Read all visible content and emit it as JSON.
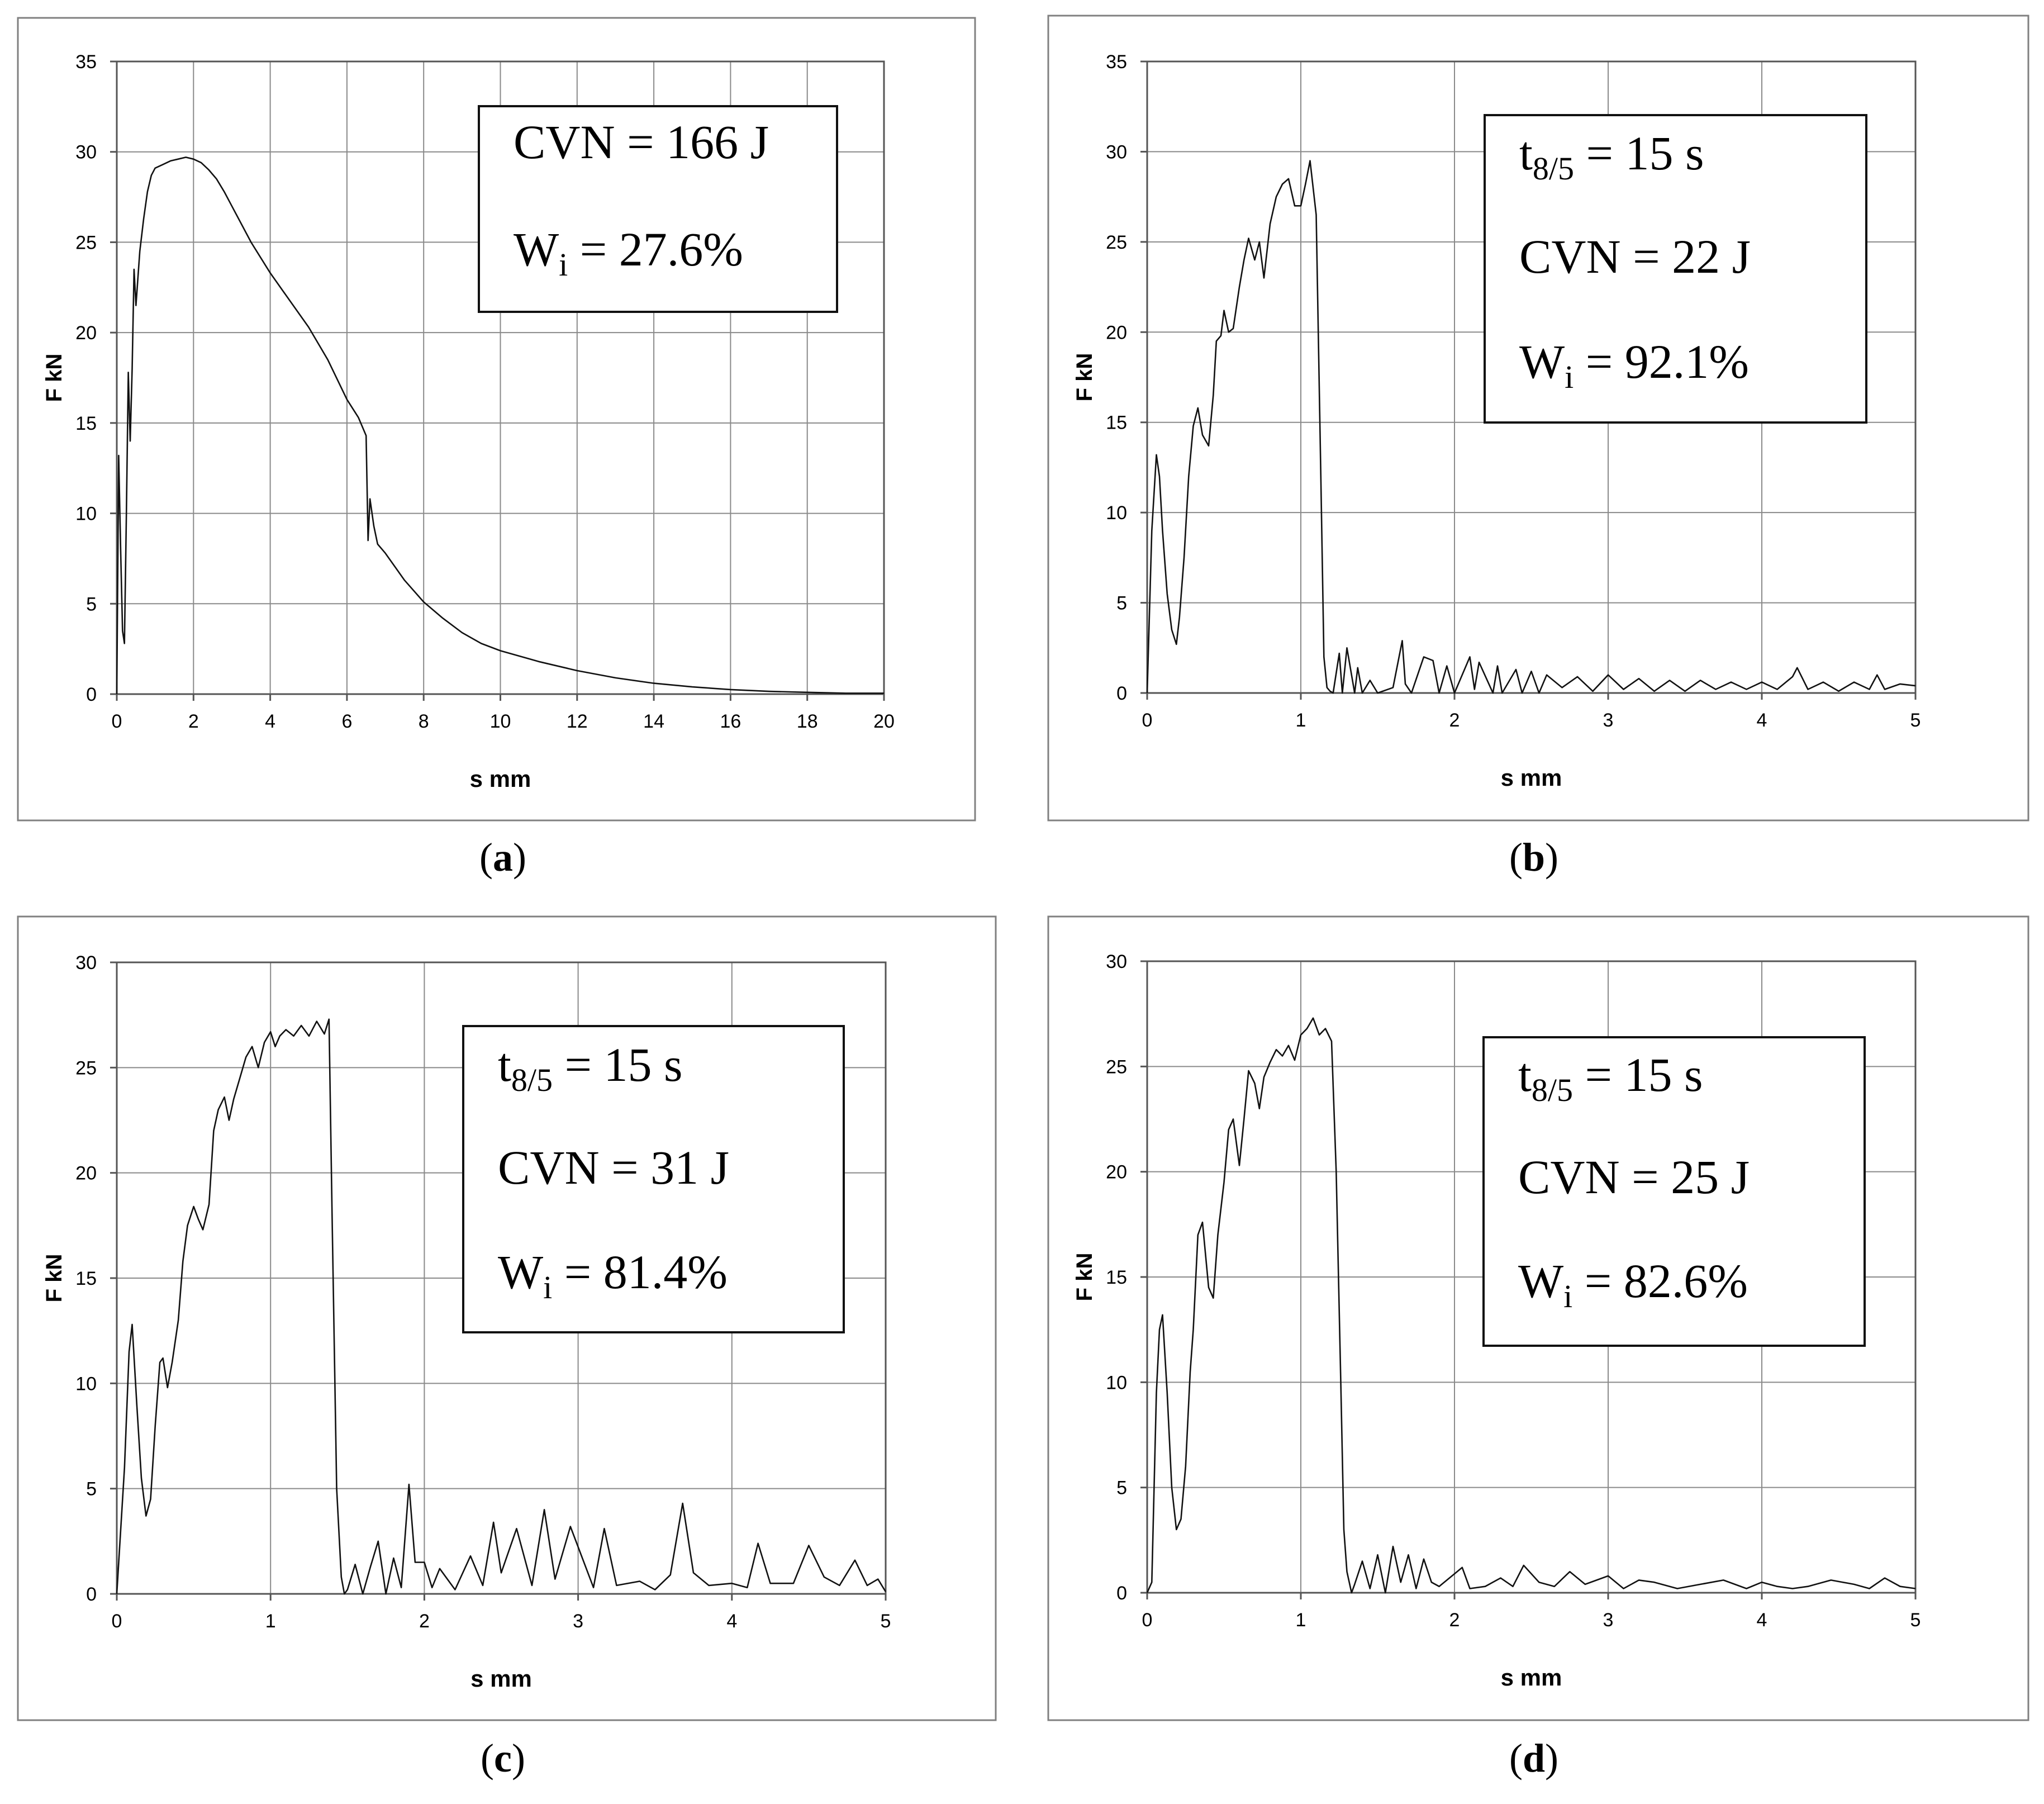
{
  "chart_data": [
    {
      "type": "line",
      "panel_label": "a",
      "xlabel": "s  mm",
      "ylabel": "F  kN",
      "xlim": [
        0,
        20
      ],
      "ylim": [
        0,
        35
      ],
      "xticks": [
        0,
        2,
        4,
        6,
        8,
        10,
        12,
        14,
        16,
        18,
        20
      ],
      "yticks": [
        0,
        5,
        10,
        15,
        20,
        25,
        30,
        35
      ],
      "grid": true,
      "annotation": [
        {
          "prefix": "CVN = 166 J",
          "sub": "",
          "suffix": ""
        },
        {
          "prefix": "W",
          "sub": "i",
          "suffix": " = 27.6%"
        }
      ],
      "series": [
        {
          "name": "F-s curve",
          "x": [
            0,
            0.05,
            0.1,
            0.15,
            0.2,
            0.25,
            0.3,
            0.35,
            0.4,
            0.45,
            0.5,
            0.6,
            0.7,
            0.8,
            0.9,
            1.0,
            1.2,
            1.4,
            1.6,
            1.8,
            2.0,
            2.2,
            2.4,
            2.6,
            2.8,
            3.0,
            3.5,
            4.0,
            4.5,
            5.0,
            5.5,
            6.0,
            6.3,
            6.5,
            6.55,
            6.6,
            6.7,
            6.8,
            7.0,
            7.5,
            8.0,
            8.5,
            9.0,
            9.5,
            10,
            11,
            12,
            13,
            14,
            15,
            16,
            17,
            18,
            19,
            20
          ],
          "y": [
            0,
            13.2,
            8,
            3.5,
            2.8,
            10,
            17.8,
            14,
            18,
            23.5,
            21.5,
            24.5,
            26.3,
            27.8,
            28.7,
            29.1,
            29.3,
            29.5,
            29.6,
            29.7,
            29.6,
            29.4,
            29.0,
            28.5,
            27.8,
            27.0,
            25.0,
            23.3,
            21.8,
            20.3,
            18.5,
            16.3,
            15.3,
            14.3,
            8.5,
            10.8,
            9.3,
            8.3,
            7.8,
            6.3,
            5.1,
            4.2,
            3.4,
            2.8,
            2.4,
            1.8,
            1.3,
            0.9,
            0.6,
            0.4,
            0.25,
            0.15,
            0.1,
            0.05,
            0.05
          ]
        }
      ]
    },
    {
      "type": "line",
      "panel_label": "b",
      "xlabel": "s  mm",
      "ylabel": "F  kN",
      "xlim": [
        0,
        5
      ],
      "ylim": [
        0,
        35
      ],
      "xticks": [
        0,
        1,
        2,
        3,
        4,
        5
      ],
      "yticks": [
        0,
        5,
        10,
        15,
        20,
        25,
        30,
        35
      ],
      "grid": true,
      "annotation": [
        {
          "prefix": "t",
          "sub": "8/5",
          "suffix": " = 15 s"
        },
        {
          "prefix": "CVN = 22 J",
          "sub": "",
          "suffix": ""
        },
        {
          "prefix": "W",
          "sub": "i",
          "suffix": " = 92.1%"
        }
      ],
      "series": [
        {
          "name": "F-s curve",
          "x": [
            0,
            0.03,
            0.06,
            0.08,
            0.1,
            0.13,
            0.16,
            0.19,
            0.21,
            0.24,
            0.27,
            0.3,
            0.33,
            0.36,
            0.4,
            0.43,
            0.45,
            0.48,
            0.5,
            0.53,
            0.56,
            0.6,
            0.63,
            0.66,
            0.7,
            0.73,
            0.76,
            0.8,
            0.84,
            0.88,
            0.92,
            0.96,
            1.0,
            1.03,
            1.06,
            1.1,
            1.13,
            1.15,
            1.17,
            1.19,
            1.21,
            1.25,
            1.27,
            1.3,
            1.35,
            1.37,
            1.4,
            1.45,
            1.5,
            1.6,
            1.66,
            1.68,
            1.72,
            1.8,
            1.86,
            1.9,
            1.95,
            2.0,
            2.1,
            2.13,
            2.16,
            2.25,
            2.28,
            2.31,
            2.4,
            2.44,
            2.5,
            2.55,
            2.6,
            2.7,
            2.8,
            2.9,
            3.0,
            3.1,
            3.2,
            3.3,
            3.4,
            3.5,
            3.6,
            3.7,
            3.8,
            3.9,
            4.0,
            4.1,
            4.2,
            4.23,
            4.3,
            4.4,
            4.5,
            4.6,
            4.7,
            4.75,
            4.8,
            4.9,
            5.0
          ],
          "y": [
            0,
            9,
            13.2,
            12,
            9,
            5.5,
            3.5,
            2.7,
            4.2,
            7.5,
            12.0,
            14.8,
            15.8,
            14.3,
            13.7,
            16.5,
            19.5,
            19.8,
            21.2,
            20.0,
            20.2,
            22.5,
            24.0,
            25.2,
            24.0,
            25.0,
            23.0,
            26.0,
            27.5,
            28.2,
            28.5,
            27.0,
            27.0,
            28.2,
            29.5,
            26.5,
            12.0,
            2.0,
            0.3,
            0.1,
            0,
            2.2,
            0,
            2.5,
            0,
            1.4,
            0,
            0.7,
            0,
            0.3,
            2.9,
            0.5,
            0,
            2.0,
            1.8,
            0,
            1.5,
            0,
            2.0,
            0.2,
            1.7,
            0,
            1.5,
            0,
            1.3,
            0,
            1.2,
            0,
            1.0,
            0.3,
            0.9,
            0.1,
            1.0,
            0.2,
            0.8,
            0.1,
            0.7,
            0.1,
            0.7,
            0.2,
            0.6,
            0.2,
            0.6,
            0.2,
            0.9,
            1.4,
            0.2,
            0.6,
            0.1,
            0.6,
            0.2,
            1.0,
            0.2,
            0.5,
            0.4
          ]
        }
      ]
    },
    {
      "type": "line",
      "panel_label": "c",
      "xlabel": "s  mm",
      "ylabel": "F  kN",
      "xlim": [
        0,
        5
      ],
      "ylim": [
        0,
        30
      ],
      "xticks": [
        0,
        1,
        2,
        3,
        4,
        5
      ],
      "yticks": [
        0,
        5,
        10,
        15,
        20,
        25,
        30
      ],
      "grid": true,
      "annotation": [
        {
          "prefix": "t",
          "sub": "8/5",
          "suffix": " = 15 s"
        },
        {
          "prefix": "CVN = 31 J",
          "sub": "",
          "suffix": ""
        },
        {
          "prefix": "W",
          "sub": "i",
          "suffix": " = 81.4%"
        }
      ],
      "series": [
        {
          "name": "F-s curve",
          "x": [
            0,
            0.05,
            0.08,
            0.1,
            0.13,
            0.16,
            0.19,
            0.22,
            0.25,
            0.28,
            0.3,
            0.33,
            0.36,
            0.4,
            0.43,
            0.46,
            0.5,
            0.53,
            0.56,
            0.6,
            0.63,
            0.66,
            0.7,
            0.73,
            0.76,
            0.8,
            0.84,
            0.88,
            0.92,
            0.96,
            1.0,
            1.03,
            1.06,
            1.1,
            1.15,
            1.2,
            1.25,
            1.3,
            1.35,
            1.38,
            1.4,
            1.43,
            1.46,
            1.48,
            1.5,
            1.55,
            1.6,
            1.65,
            1.7,
            1.75,
            1.8,
            1.85,
            1.9,
            1.94,
            2.0,
            2.05,
            2.1,
            2.2,
            2.3,
            2.38,
            2.45,
            2.5,
            2.6,
            2.7,
            2.78,
            2.85,
            2.95,
            3.1,
            3.17,
            3.25,
            3.4,
            3.5,
            3.6,
            3.68,
            3.75,
            3.85,
            4.0,
            4.1,
            4.17,
            4.25,
            4.4,
            4.5,
            4.6,
            4.7,
            4.8,
            4.88,
            4.95,
            5.0
          ],
          "y": [
            0,
            6,
            11.5,
            12.8,
            9.0,
            5.5,
            3.7,
            4.5,
            8.0,
            11.0,
            11.2,
            9.8,
            11.0,
            13.0,
            15.8,
            17.5,
            18.4,
            17.8,
            17.3,
            18.5,
            22.0,
            23.0,
            23.6,
            22.5,
            23.5,
            24.5,
            25.5,
            26.0,
            25.0,
            26.2,
            26.7,
            26.0,
            26.5,
            26.8,
            26.5,
            27.0,
            26.5,
            27.2,
            26.6,
            27.3,
            18.0,
            5.0,
            0.8,
            0,
            0.2,
            1.4,
            0,
            1.3,
            2.5,
            0,
            1.7,
            0.3,
            5.2,
            1.5,
            1.5,
            0.3,
            1.2,
            0.2,
            1.8,
            0.4,
            3.4,
            1.0,
            3.1,
            0.4,
            4.0,
            0.7,
            3.2,
            0.3,
            3.1,
            0.4,
            0.6,
            0.2,
            0.9,
            4.3,
            1.0,
            0.4,
            0.5,
            0.3,
            2.4,
            0.5,
            0.5,
            2.3,
            0.8,
            0.4,
            1.6,
            0.4,
            0.7,
            0.1
          ]
        }
      ]
    },
    {
      "type": "line",
      "panel_label": "d",
      "xlabel": "s  mm",
      "ylabel": "F  kN",
      "xlim": [
        0,
        5
      ],
      "ylim": [
        0,
        30
      ],
      "xticks": [
        0,
        1,
        2,
        3,
        4,
        5
      ],
      "yticks": [
        0,
        5,
        10,
        15,
        20,
        25,
        30
      ],
      "grid": true,
      "annotation": [
        {
          "prefix": "t",
          "sub": "8/5",
          "suffix": " = 15 s"
        },
        {
          "prefix": "CVN = 25 J",
          "sub": "",
          "suffix": ""
        },
        {
          "prefix": "W",
          "sub": "i",
          "suffix": " = 82.6%"
        }
      ],
      "series": [
        {
          "name": "F-s curve",
          "x": [
            0,
            0.03,
            0.06,
            0.08,
            0.1,
            0.13,
            0.16,
            0.19,
            0.22,
            0.25,
            0.28,
            0.3,
            0.33,
            0.36,
            0.4,
            0.43,
            0.46,
            0.5,
            0.53,
            0.56,
            0.6,
            0.63,
            0.66,
            0.7,
            0.73,
            0.76,
            0.8,
            0.84,
            0.88,
            0.92,
            0.96,
            1.0,
            1.04,
            1.08,
            1.12,
            1.16,
            1.2,
            1.23,
            1.26,
            1.28,
            1.3,
            1.33,
            1.35,
            1.4,
            1.45,
            1.5,
            1.55,
            1.6,
            1.65,
            1.7,
            1.75,
            1.8,
            1.85,
            1.9,
            2.0,
            2.05,
            2.1,
            2.2,
            2.3,
            2.38,
            2.45,
            2.55,
            2.65,
            2.75,
            2.85,
            3.0,
            3.1,
            3.2,
            3.3,
            3.45,
            3.6,
            3.75,
            3.9,
            4.0,
            4.1,
            4.2,
            4.3,
            4.45,
            4.6,
            4.7,
            4.8,
            4.9,
            5.0
          ],
          "y": [
            0,
            0.5,
            9.5,
            12.5,
            13.2,
            9.5,
            5.0,
            3.0,
            3.5,
            6.0,
            10.5,
            12.5,
            17.0,
            17.6,
            14.5,
            14.0,
            17.0,
            19.5,
            22.0,
            22.5,
            20.3,
            22.5,
            24.8,
            24.2,
            23.0,
            24.5,
            25.2,
            25.8,
            25.5,
            26.0,
            25.3,
            26.5,
            26.8,
            27.3,
            26.5,
            26.8,
            26.2,
            20.0,
            10.0,
            3.0,
            1.0,
            0,
            0.4,
            1.5,
            0.2,
            1.8,
            0,
            2.2,
            0.5,
            1.8,
            0.2,
            1.6,
            0.5,
            0.3,
            0.9,
            1.2,
            0.2,
            0.3,
            0.7,
            0.3,
            1.3,
            0.5,
            0.3,
            1.0,
            0.4,
            0.8,
            0.2,
            0.6,
            0.5,
            0.2,
            0.4,
            0.6,
            0.2,
            0.5,
            0.3,
            0.2,
            0.3,
            0.6,
            0.4,
            0.2,
            0.7,
            0.3,
            0.2
          ]
        }
      ]
    }
  ]
}
